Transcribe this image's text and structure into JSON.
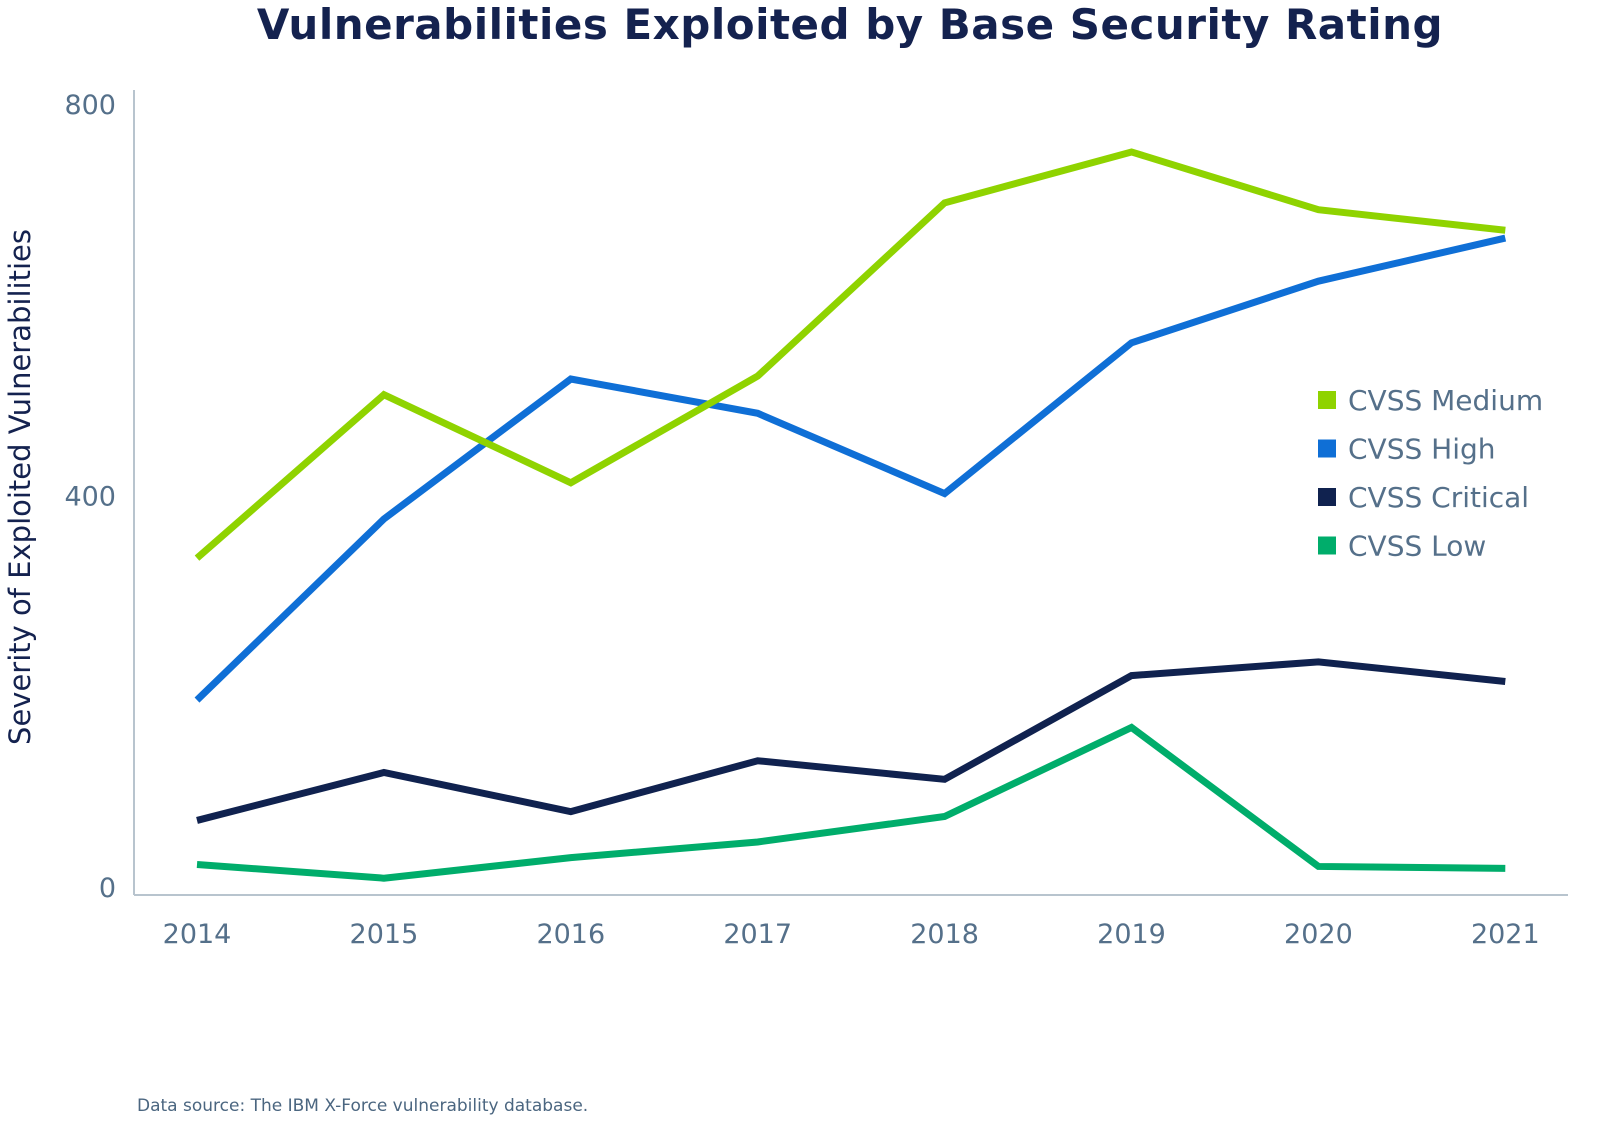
{
  "chart_data": {
    "type": "line",
    "title": "Vulnerabilities Exploited by Base Security Rating",
    "xlabel": "",
    "ylabel": "Severity of Exploited Vulnerabilities",
    "x": [
      "2014",
      "2015",
      "2016",
      "2017",
      "2018",
      "2019",
      "2020",
      "2021"
    ],
    "yticks": [
      "0",
      "400",
      "800"
    ],
    "ylim": [
      0,
      800
    ],
    "grid": false,
    "legend_position": "right",
    "series": [
      {
        "name": "CVSS Medium",
        "color": "#8fd300",
        "values": [
          336,
          503,
          413,
          522,
          699,
          751,
          692,
          671
        ]
      },
      {
        "name": "CVSS High",
        "color": "#0f6fd6",
        "values": [
          191,
          376,
          519,
          484,
          402,
          556,
          619,
          663
        ]
      },
      {
        "name": "CVSS Critical",
        "color": "#10224f",
        "values": [
          68,
          117,
          77,
          129,
          110,
          216,
          230,
          210
        ]
      },
      {
        "name": "CVSS Low",
        "color": "#00ad6b",
        "values": [
          23,
          9,
          30,
          46,
          72,
          163,
          21,
          19
        ]
      }
    ],
    "footer": "Data source: The IBM X-Force vulnerability database."
  }
}
